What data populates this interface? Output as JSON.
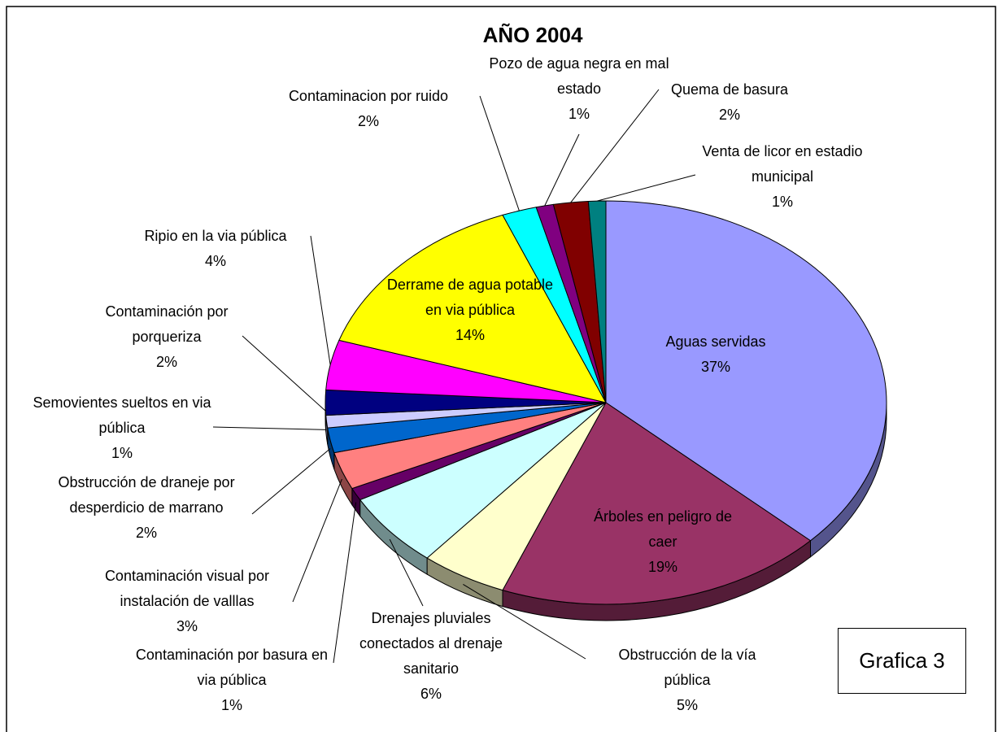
{
  "chart_data": {
    "type": "pie3d",
    "title": "AÑO 2004",
    "annotation": "Grafica 3",
    "categories": [
      "Aguas servidas",
      "Árboles en peligro de caer",
      "Obstrucción de la vía pública",
      "Drenajes pluviales conectados al drenaje sanitario",
      "Contaminación por basura en via pública",
      "Contaminación visual por instalación de valllas",
      "Obstrucción de draneje por desperdicio de marrano",
      "Semovientes sueltos en via pública",
      "Contaminación por porqueriza",
      "Ripio en la via pública",
      "Derrame de agua potable en via pública",
      "Contaminacion por ruido",
      "Pozo de agua negra en mal estado",
      "Quema de basura",
      "Venta de licor en estadio municipal"
    ],
    "values": [
      37,
      19,
      5,
      6,
      1,
      3,
      2,
      1,
      2,
      4,
      14,
      2,
      1,
      2,
      1
    ],
    "value_labels": [
      "37%",
      "19%",
      "5%",
      "6%",
      "1%",
      "3%",
      "2%",
      "1%",
      "2%",
      "4%",
      "14%",
      "2%",
      "1%",
      "2%",
      "1%"
    ],
    "colors": [
      "#9999ff",
      "#993366",
      "#ffffcc",
      "#ccffff",
      "#660066",
      "#ff8080",
      "#0066cc",
      "#ccccff",
      "#000080",
      "#ff00ff",
      "#ffff00",
      "#00ffff",
      "#800080",
      "#800000",
      "#008080"
    ]
  }
}
